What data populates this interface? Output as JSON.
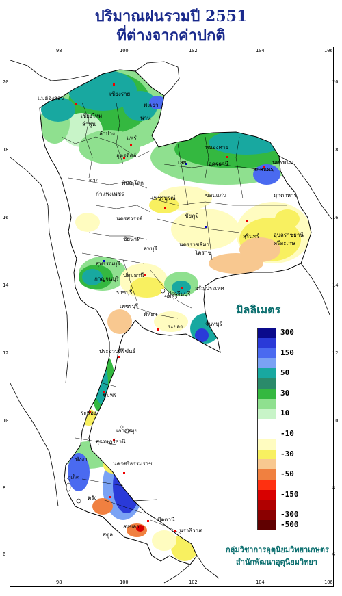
{
  "title_line1": "ปริมาณฝนรวมปี  2551",
  "title_line2": "ที่ต่างจากค่าปกติ",
  "legend": {
    "unit": "มิลลิเมตร",
    "classes": [
      {
        "label": "300",
        "color": "#0a0a8c"
      },
      {
        "label": "",
        "color": "#2a3ad8"
      },
      {
        "label": "150",
        "color": "#4a6af0"
      },
      {
        "label": "",
        "color": "#7aa2f4"
      },
      {
        "label": "50",
        "color": "#18a8a0"
      },
      {
        "label": "",
        "color": "#2a8a6a"
      },
      {
        "label": "30",
        "color": "#34b840"
      },
      {
        "label": "",
        "color": "#8fe08f"
      },
      {
        "label": "10",
        "color": "#c8f4c8"
      },
      {
        "label": "",
        "color": "#ffffff"
      },
      {
        "label": "-10",
        "color": "#ffffff"
      },
      {
        "label": "",
        "color": "#fffcc0"
      },
      {
        "label": "-30",
        "color": "#f8f060"
      },
      {
        "label": "",
        "color": "#f8c890"
      },
      {
        "label": "-50",
        "color": "#f08040"
      },
      {
        "label": "",
        "color": "#ff3010"
      },
      {
        "label": "-150",
        "color": "#d80000"
      },
      {
        "label": "",
        "color": "#b00000"
      },
      {
        "label": "-300",
        "color": "#8a0000"
      },
      {
        "label": "-500",
        "color": "#600000"
      }
    ]
  },
  "ticks": {
    "longitude": [
      "98",
      "100",
      "102",
      "104",
      "106"
    ],
    "latitude": [
      "20",
      "18",
      "16",
      "14",
      "12",
      "10",
      "8",
      "6"
    ]
  },
  "credit_line1": "กลุ่มวิชาการอุตุนิยมวิทยาเกษตร",
  "credit_line2": "สำนักพัฒนาอุตุนิยมวิทยา",
  "places": [
    "เชียงราย",
    "แม่ฮ่องสอน",
    "พะเยา",
    "เชียงใหม่",
    "ลำพูน",
    "น่าน",
    "ลำปาง",
    "แพร่",
    "ตาก",
    "อุตรดิตถ์",
    "เลย",
    "หนองคาย",
    "อุดรธานี",
    "นครพนม",
    "สกลนคร",
    "มุกดาหาร",
    "พิษณุโลก",
    "กำแพงเพชร",
    "เพชรบูรณ์",
    "ขอนแก่น",
    "ชัยภูมิ",
    "นครสวรรค์",
    "อุบลราชธานี",
    "สุรินทร์",
    "ศรีสะเกษ",
    "ชัยนาท",
    "ลพบุรี",
    "นครราชสีมา",
    "สุพรรณบุรี",
    "โคราช",
    "กาญจนบุรี",
    "ปทุมธานี",
    "ปราจีนบุรี",
    "อรัญประเทศ",
    "ราชบุรี",
    "ชลบุรี",
    "พัทยา",
    "ระยอง",
    "จันทบุรี",
    "เพชรบุรี",
    "ประจวบคีรีขันธ์",
    "ชุมพร",
    "ระนอง",
    "เกาะสมุย",
    "สุราษฎร์ธานี",
    "พังงา",
    "ภูเก็ต",
    "นครศรีธรรมราช",
    "ตรัง",
    "สงขลา",
    "สตูล",
    "ปัตตานี",
    "นราธิวาส"
  ]
}
